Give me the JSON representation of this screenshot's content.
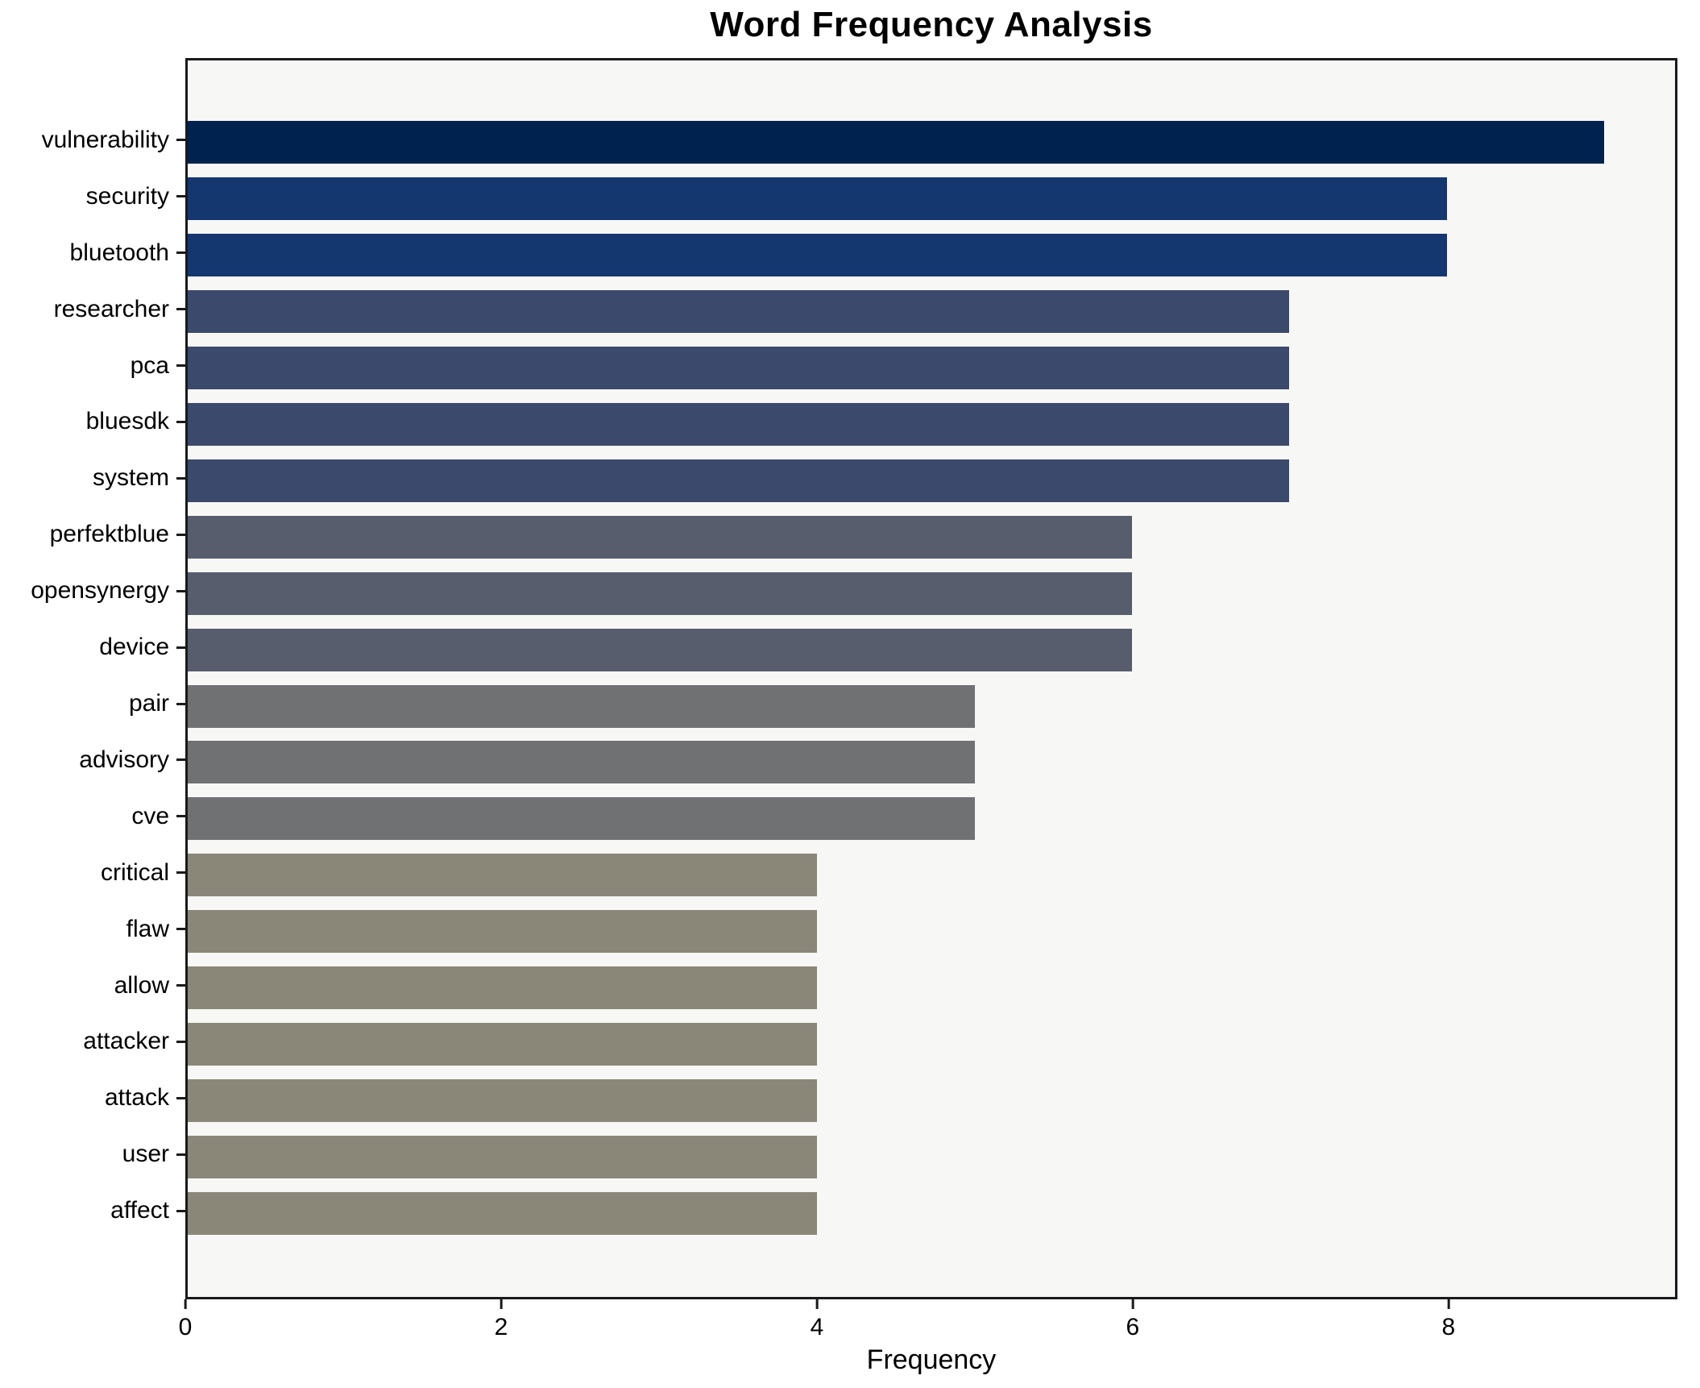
{
  "chart": {
    "title": "Word Frequency Analysis",
    "xlabel": "Frequency"
  },
  "chart_data": {
    "type": "bar",
    "orientation": "horizontal",
    "title": "Word Frequency Analysis",
    "xlabel": "Frequency",
    "ylabel": "",
    "categories": [
      "vulnerability",
      "security",
      "bluetooth",
      "researcher",
      "pca",
      "bluesdk",
      "system",
      "perfektblue",
      "opensynergy",
      "device",
      "pair",
      "advisory",
      "cve",
      "critical",
      "flaw",
      "allow",
      "attacker",
      "attack",
      "user",
      "affect"
    ],
    "values": [
      9,
      8,
      8,
      7,
      7,
      7,
      7,
      6,
      6,
      6,
      5,
      5,
      5,
      4,
      4,
      4,
      4,
      4,
      4,
      4
    ],
    "bar_colors": [
      "#00224e",
      "#143770",
      "#143770",
      "#3b496c",
      "#3b496c",
      "#3b496c",
      "#3b496c",
      "#575d6d",
      "#575d6d",
      "#575d6d",
      "#707173",
      "#707173",
      "#707173",
      "#8a8779",
      "#8a8779",
      "#8a8779",
      "#8a8779",
      "#8a8779",
      "#8a8779",
      "#8a8779"
    ],
    "xlim": [
      0,
      9.45
    ],
    "xticks": [
      0,
      2,
      4,
      6,
      8
    ],
    "grid": false,
    "legend_position": "none",
    "plot_background": "#f7f7f5",
    "figure_background": "#ffffff",
    "spine_color": "#1a1a1a"
  }
}
